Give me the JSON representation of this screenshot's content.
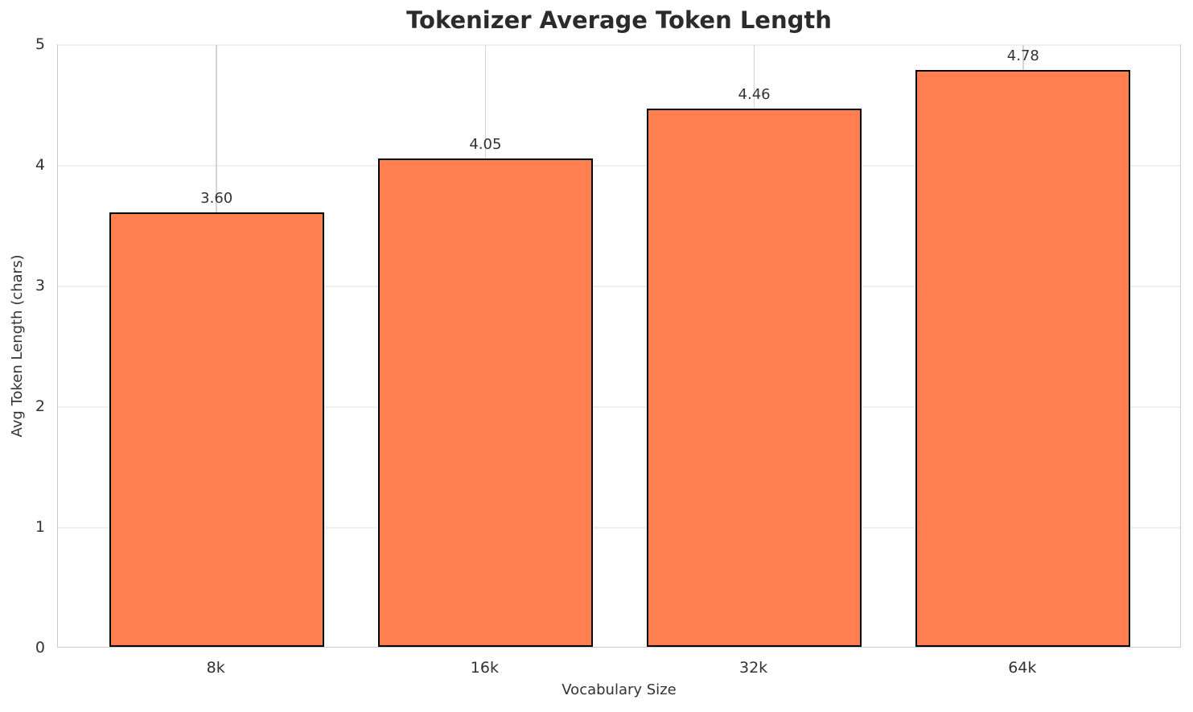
{
  "chart_data": {
    "type": "bar",
    "title": "Tokenizer Average Token Length",
    "xlabel": "Vocabulary Size",
    "ylabel": "Avg Token Length (chars)",
    "categories": [
      "8k",
      "16k",
      "32k",
      "64k"
    ],
    "values": [
      3.6,
      4.05,
      4.46,
      4.78
    ],
    "bar_labels": [
      "3.60",
      "4.05",
      "4.46",
      "4.78"
    ],
    "ylim": [
      0,
      5
    ],
    "yticks": [
      0,
      1,
      2,
      3,
      4,
      5
    ],
    "bar_width_fraction": 0.8,
    "grid": true,
    "legend_position": "none",
    "colors": {
      "bar_fill": "#FF7F50",
      "bar_edge": "#000000",
      "grid_horizontal": "#efefef",
      "grid_vertical": "#d4d4d4",
      "spine": "#cccccc",
      "text": "#333333",
      "title": "#2b2b2b"
    }
  }
}
